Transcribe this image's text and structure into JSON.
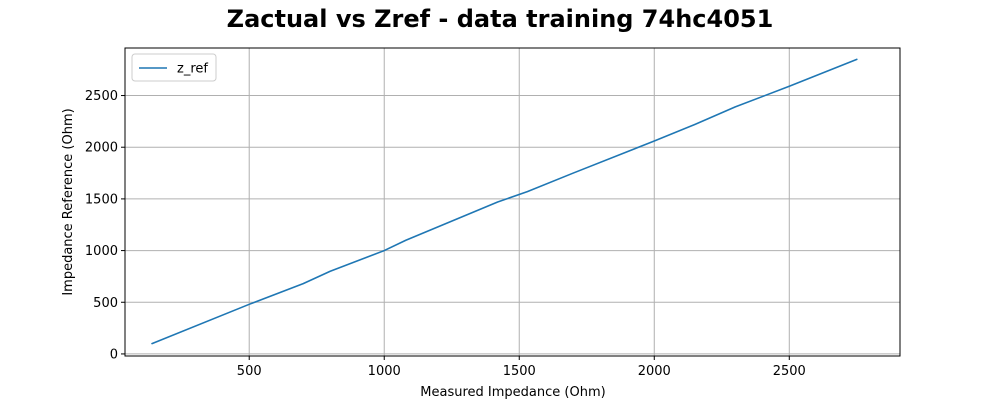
{
  "chart_data": {
    "type": "line",
    "title": "Zactual vs Zref - data training 74hc4051",
    "xlabel": "Measured Impedance (Ohm)",
    "ylabel": "Impedance Reference (Ohm)",
    "xlim": [
      40,
      2910
    ],
    "ylim": [
      -20,
      2960
    ],
    "xticks": [
      500,
      1000,
      1500,
      2000,
      2500
    ],
    "yticks": [
      0,
      500,
      1000,
      1500,
      2000,
      2500
    ],
    "grid": true,
    "legend_position": "upper-left",
    "series": [
      {
        "name": "z_ref",
        "color": "#1f77b4",
        "x": [
          140,
          500,
          700,
          800,
          1000,
          1080,
          1420,
          1530,
          1700,
          2000,
          2150,
          2300,
          2500,
          2750
        ],
        "y": [
          100,
          480,
          680,
          800,
          1000,
          1100,
          1470,
          1570,
          1750,
          2060,
          2220,
          2390,
          2590,
          2850
        ]
      }
    ]
  }
}
